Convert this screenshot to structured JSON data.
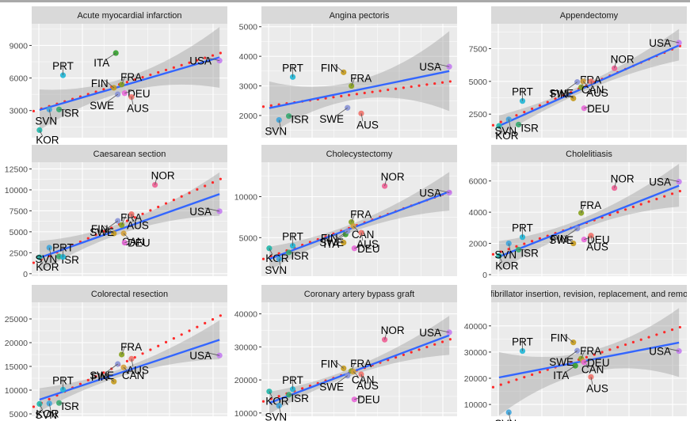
{
  "chart_data": {
    "type": "scatter",
    "layout": "facet-grid 3x3",
    "x_axis": {
      "label": "",
      "tick_labels": [],
      "range": [
        0,
        1
      ]
    },
    "countries": {
      "KOR": {
        "x": 0.04,
        "color": "#1FB5A8"
      },
      "SVN": {
        "x": 0.09,
        "color": "#3FA4DA"
      },
      "ISR": {
        "x": 0.14,
        "color": "#35A970"
      },
      "PRT": {
        "x": 0.16,
        "color": "#1FB6D6"
      },
      "FIN": {
        "x": 0.42,
        "color": "#C49A1D"
      },
      "ITA": {
        "x": 0.43,
        "color": "#33A02C"
      },
      "SWE": {
        "x": 0.44,
        "color": "#8A94D6"
      },
      "FRA": {
        "x": 0.46,
        "color": "#87A21C"
      },
      "CAN": {
        "x": 0.47,
        "color": "#D29E3A"
      },
      "DEU": {
        "x": 0.475,
        "color": "#E868D8"
      },
      "AUS": {
        "x": 0.51,
        "color": "#F0736C"
      },
      "NOR": {
        "x": 0.63,
        "color": "#EE5E94"
      },
      "USA": {
        "x": 0.96,
        "color": "#C37CF0"
      }
    },
    "legend": "none",
    "series_style": {
      "points": "country-colored circles with labels",
      "fit_line": {
        "name": "linear fit",
        "color": "#3366FF"
      },
      "confidence_band": {
        "color": "#999999",
        "opacity": 0.4
      },
      "reference_line": {
        "name": "dotted reference",
        "color": "#FF2A2A",
        "style": "dotted"
      }
    },
    "panels": [
      {
        "title": "Acute myocardial infarction",
        "ylim": [
          500,
          11000
        ],
        "yticks": [
          3000,
          6000,
          9000
        ],
        "points": {
          "KOR": 1200,
          "SVN": 3100,
          "ISR": 3100,
          "PRT": 6250,
          "FIN": 5100,
          "ITA": 8300,
          "SWE": 4500,
          "FRA": 5400,
          "DEU": 4600,
          "AUS": 4250,
          "USA": 7600
        },
        "fit": [
          3050,
          7900
        ],
        "band": [
          [
            4950,
            1200
          ],
          [
            10700,
            5100
          ]
        ],
        "ref": [
          2950,
          8300
        ]
      },
      {
        "title": "Angina pectoris",
        "ylim": [
          1250,
          5100
        ],
        "yticks": [
          2000,
          3000,
          4000,
          5000
        ],
        "points": {
          "SVN": 1850,
          "ISR": 1980,
          "PRT": 3300,
          "FIN": 3460,
          "SWE": 2260,
          "FRA": 3000,
          "AUS": 2070,
          "USA": 3650
        },
        "fit": [
          2250,
          3500
        ],
        "band": [
          [
            3150,
            1350
          ],
          [
            4850,
            2150
          ]
        ],
        "ref": [
          2300,
          3150
        ]
      },
      {
        "title": "Appendectomy",
        "ylim": [
          700,
          9400
        ],
        "yticks": [
          2500,
          5000,
          7500
        ],
        "points": {
          "KOR": 1600,
          "SVN": 2100,
          "ISR": 1700,
          "PRT": 3500,
          "FIN": 3700,
          "SWE": 4950,
          "FRA": 4550,
          "CAN": 5000,
          "DEU": 2950,
          "AUS": 5000,
          "NOR": 6000,
          "USA": 7950
        },
        "fit": [
          1600,
          7750
        ],
        "band": [
          [
            2400,
            800
          ],
          [
            9000,
            6600
          ]
        ],
        "ref": [
          1650,
          7700
        ]
      },
      {
        "title": "Caesarean section",
        "ylim": [
          -300,
          13300
        ],
        "yticks": [
          0,
          2500,
          5000,
          7500,
          10000,
          12500
        ],
        "points": {
          "KOR": 1950,
          "SVN": 3100,
          "ISR": 2050,
          "PRT": 2000,
          "FIN": 4800,
          "SWE": 6300,
          "FRA": 5800,
          "CAN": 4800,
          "DEU": 3700,
          "AUS": 7100,
          "NOR": 10600,
          "USA": 7450
        },
        "fit": [
          1900,
          9500
        ],
        "band": [
          [
            3900,
            200
          ],
          [
            12100,
            6900
          ]
        ],
        "ref": [
          1300,
          11300
        ]
      },
      {
        "title": "Cholecystectomy",
        "ylim": [
          300,
          14200
        ],
        "yticks": [
          5000,
          10000
        ],
        "points": {
          "KOR": 3700,
          "SVN": 2400,
          "ISR": 3200,
          "PRT": 4000,
          "FIN": 4400,
          "ITA": 5400,
          "SWE": 5800,
          "FRA": 6900,
          "CAN": 6400,
          "DEU": 3700,
          "AUS": 5600,
          "NOR": 11300,
          "USA": 10500
        },
        "fit": [
          2400,
          10600
        ],
        "band": [
          [
            3900,
            1000
          ],
          [
            13000,
            8300
          ]
        ],
        "ref": [
          2400,
          10600
        ]
      },
      {
        "title": "Cholelitiasis",
        "ylim": [
          -100,
          7200
        ],
        "yticks": [
          0,
          2000,
          4000,
          6000
        ],
        "points": {
          "KOR": 1200,
          "SVN": 2000,
          "ISR": 1600,
          "PRT": 2400,
          "FIN": 2000,
          "SWE": 2950,
          "FRA": 3950,
          "DEU": 2250,
          "AUS": 2500,
          "NOR": 5550,
          "USA": 5950
        },
        "fit": [
          1150,
          5700
        ],
        "band": [
          [
            2150,
            200
          ],
          [
            7100,
            4350
          ]
        ],
        "ref": [
          1300,
          5350
        ]
      },
      {
        "title": "Colorectal resection",
        "ylim": [
          4500,
          28500
        ],
        "yticks": [
          5000,
          10000,
          15000,
          20000,
          25000
        ],
        "points": {
          "KOR": 7100,
          "SVN": 7200,
          "ISR": 7300,
          "PRT": 10100,
          "FIN": 11800,
          "SWE": 15500,
          "FRA": 17500,
          "CAN": 14800,
          "AUS": 16600,
          "USA": 17300
        },
        "fit": [
          8000,
          20600
        ],
        "band": [
          [
            10400,
            5500
          ],
          [
            24700,
            16500
          ]
        ],
        "ref": [
          6500,
          25700
        ]
      },
      {
        "title": "Coronary artery bypass graft",
        "ylim": [
          9000,
          43500
        ],
        "yticks": [
          10000,
          20000,
          30000,
          40000
        ],
        "points": {
          "KOR": 16500,
          "SVN": 12200,
          "ISR": 15500,
          "PRT": 17200,
          "FIN": 23500,
          "SWE": 21300,
          "FRA": 22700,
          "CAN": 22500,
          "DEU": 14100,
          "AUS": 21700,
          "NOR": 32200,
          "USA": 34400
        },
        "fit": [
          13000,
          33500
        ],
        "band": [
          [
            16400,
            9700
          ],
          [
            39400,
            27600
          ]
        ],
        "ref": [
          13500,
          32300
        ]
      },
      {
        "title": "fibrillator insertion, revision, replacement, and remo",
        "ylim": [
          5500,
          49000
        ],
        "yticks": [
          10000,
          20000,
          30000,
          40000
        ],
        "points": {
          "SVN": 7000,
          "PRT": 30400,
          "FIN": 33700,
          "ITA": 24800,
          "SWE": 30500,
          "FRA": 27500,
          "CAN": 26500,
          "DEU": 26100,
          "AUS": 20500,
          "USA": 30400
        },
        "fit": [
          20300,
          33600
        ],
        "band": [
          [
            30000,
            5800
          ],
          [
            46800,
            20500
          ]
        ],
        "ref": [
          16600,
          39500
        ]
      }
    ]
  }
}
